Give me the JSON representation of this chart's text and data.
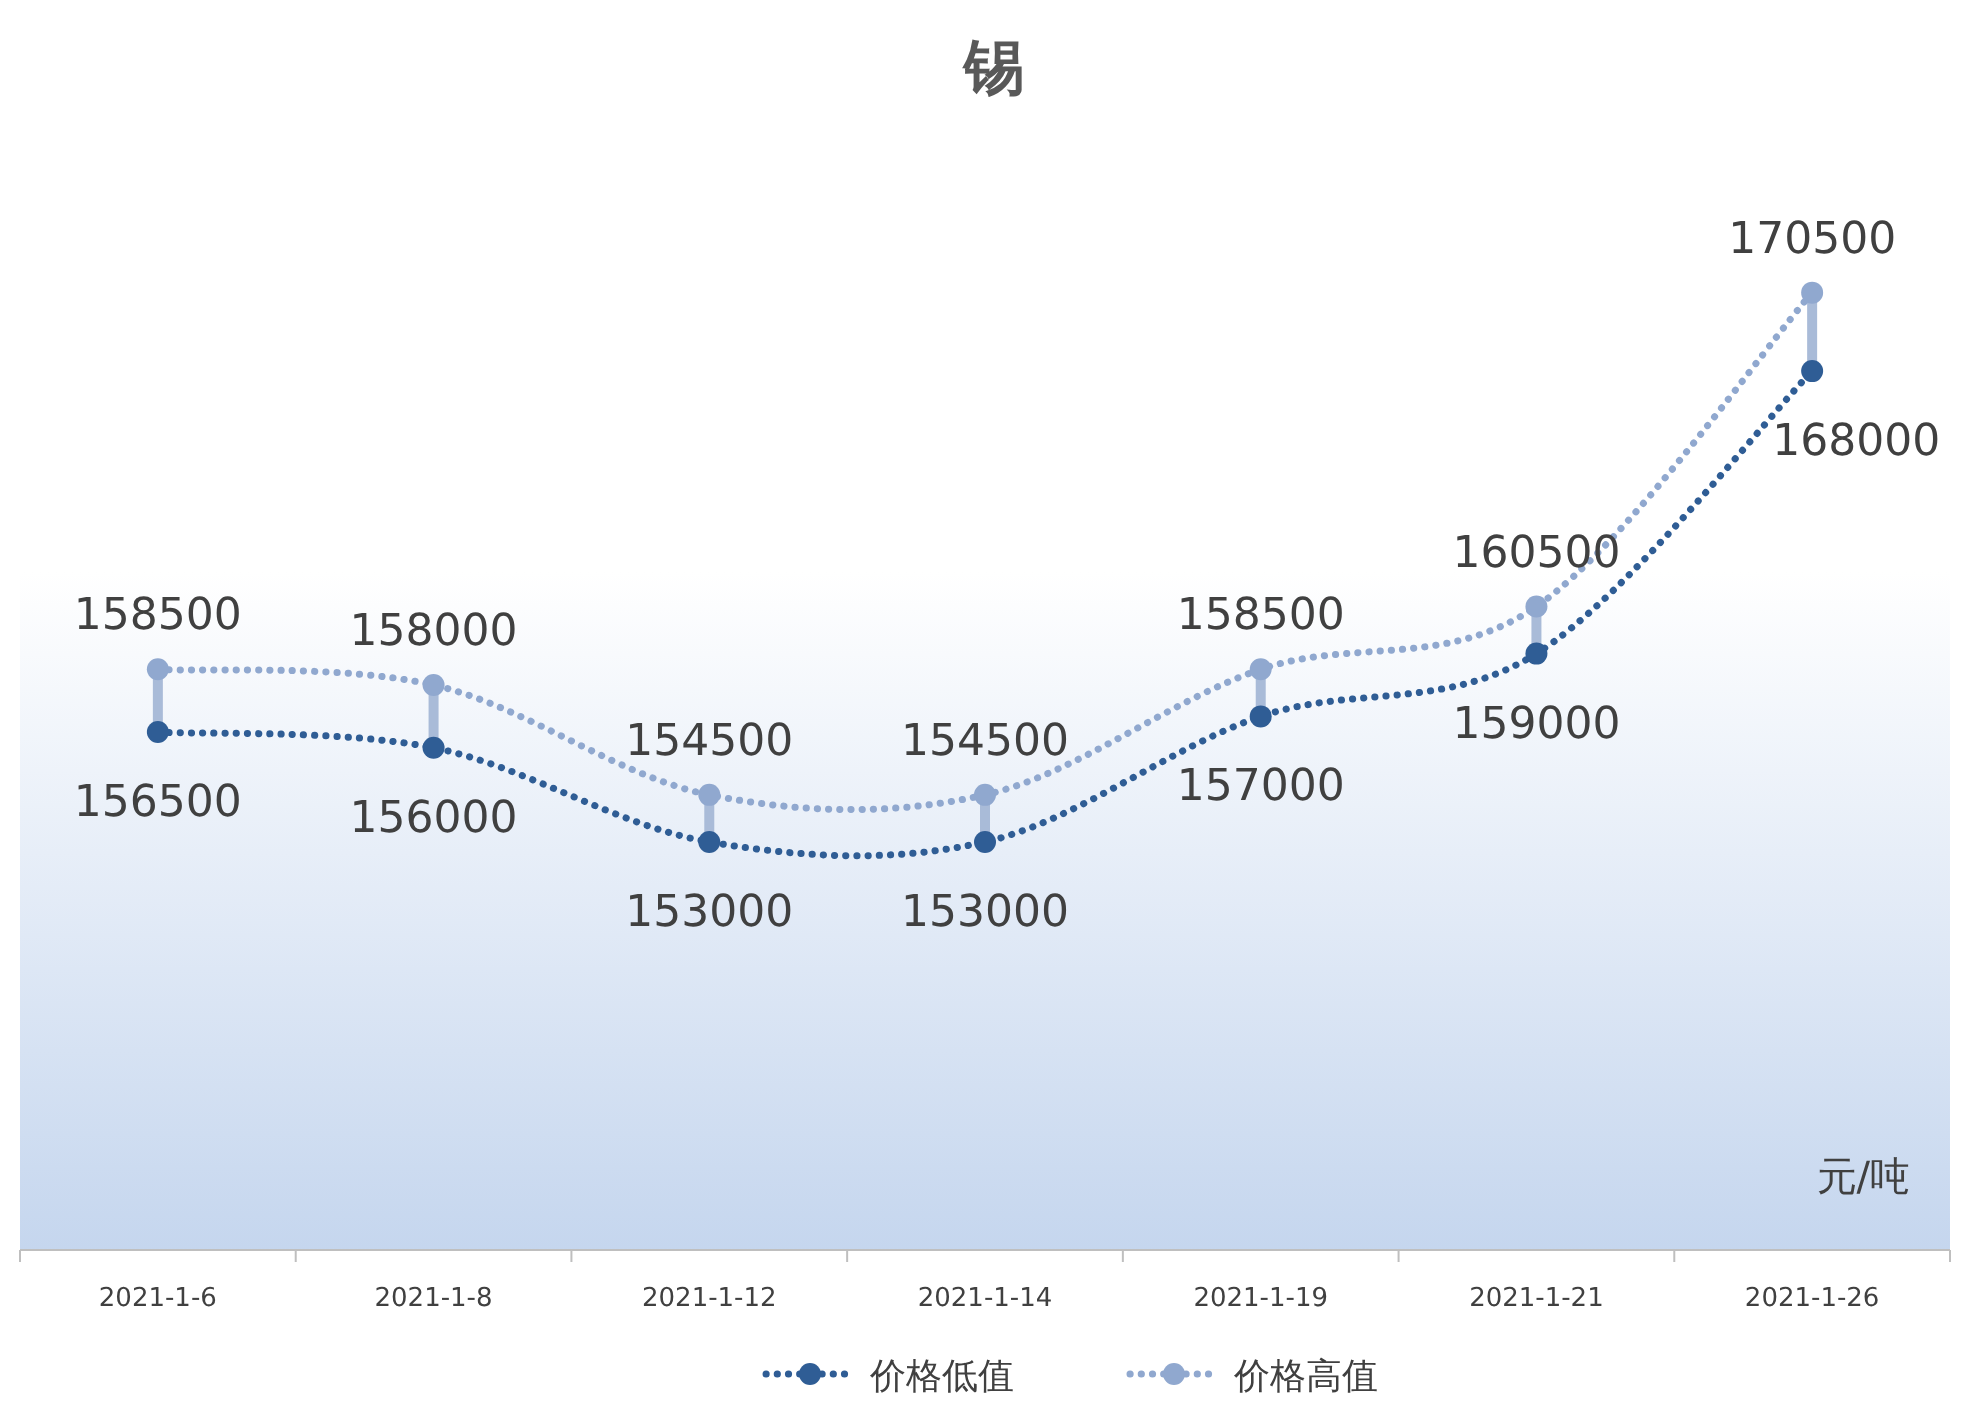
{
  "chart_data": {
    "type": "line",
    "title": "锡",
    "categories": [
      "2021-1-6",
      "2021-1-8",
      "2021-1-12",
      "2021-1-14",
      "2021-1-19",
      "2021-1-21",
      "2021-1-26"
    ],
    "series": [
      {
        "name": "价格低值",
        "color": "#2f5d95",
        "values": [
          156500,
          156000,
          153000,
          153000,
          157000,
          159000,
          168000
        ]
      },
      {
        "name": "价格高值",
        "color": "#90a8cf",
        "values": [
          158500,
          158000,
          154500,
          154500,
          158500,
          160500,
          170500
        ]
      }
    ],
    "ylim": [
      140000,
      176000
    ],
    "data_labels": true,
    "legend": "bottom",
    "marker": "circle",
    "line_style": "dotted",
    "annotations": [
      "元/吨"
    ]
  }
}
